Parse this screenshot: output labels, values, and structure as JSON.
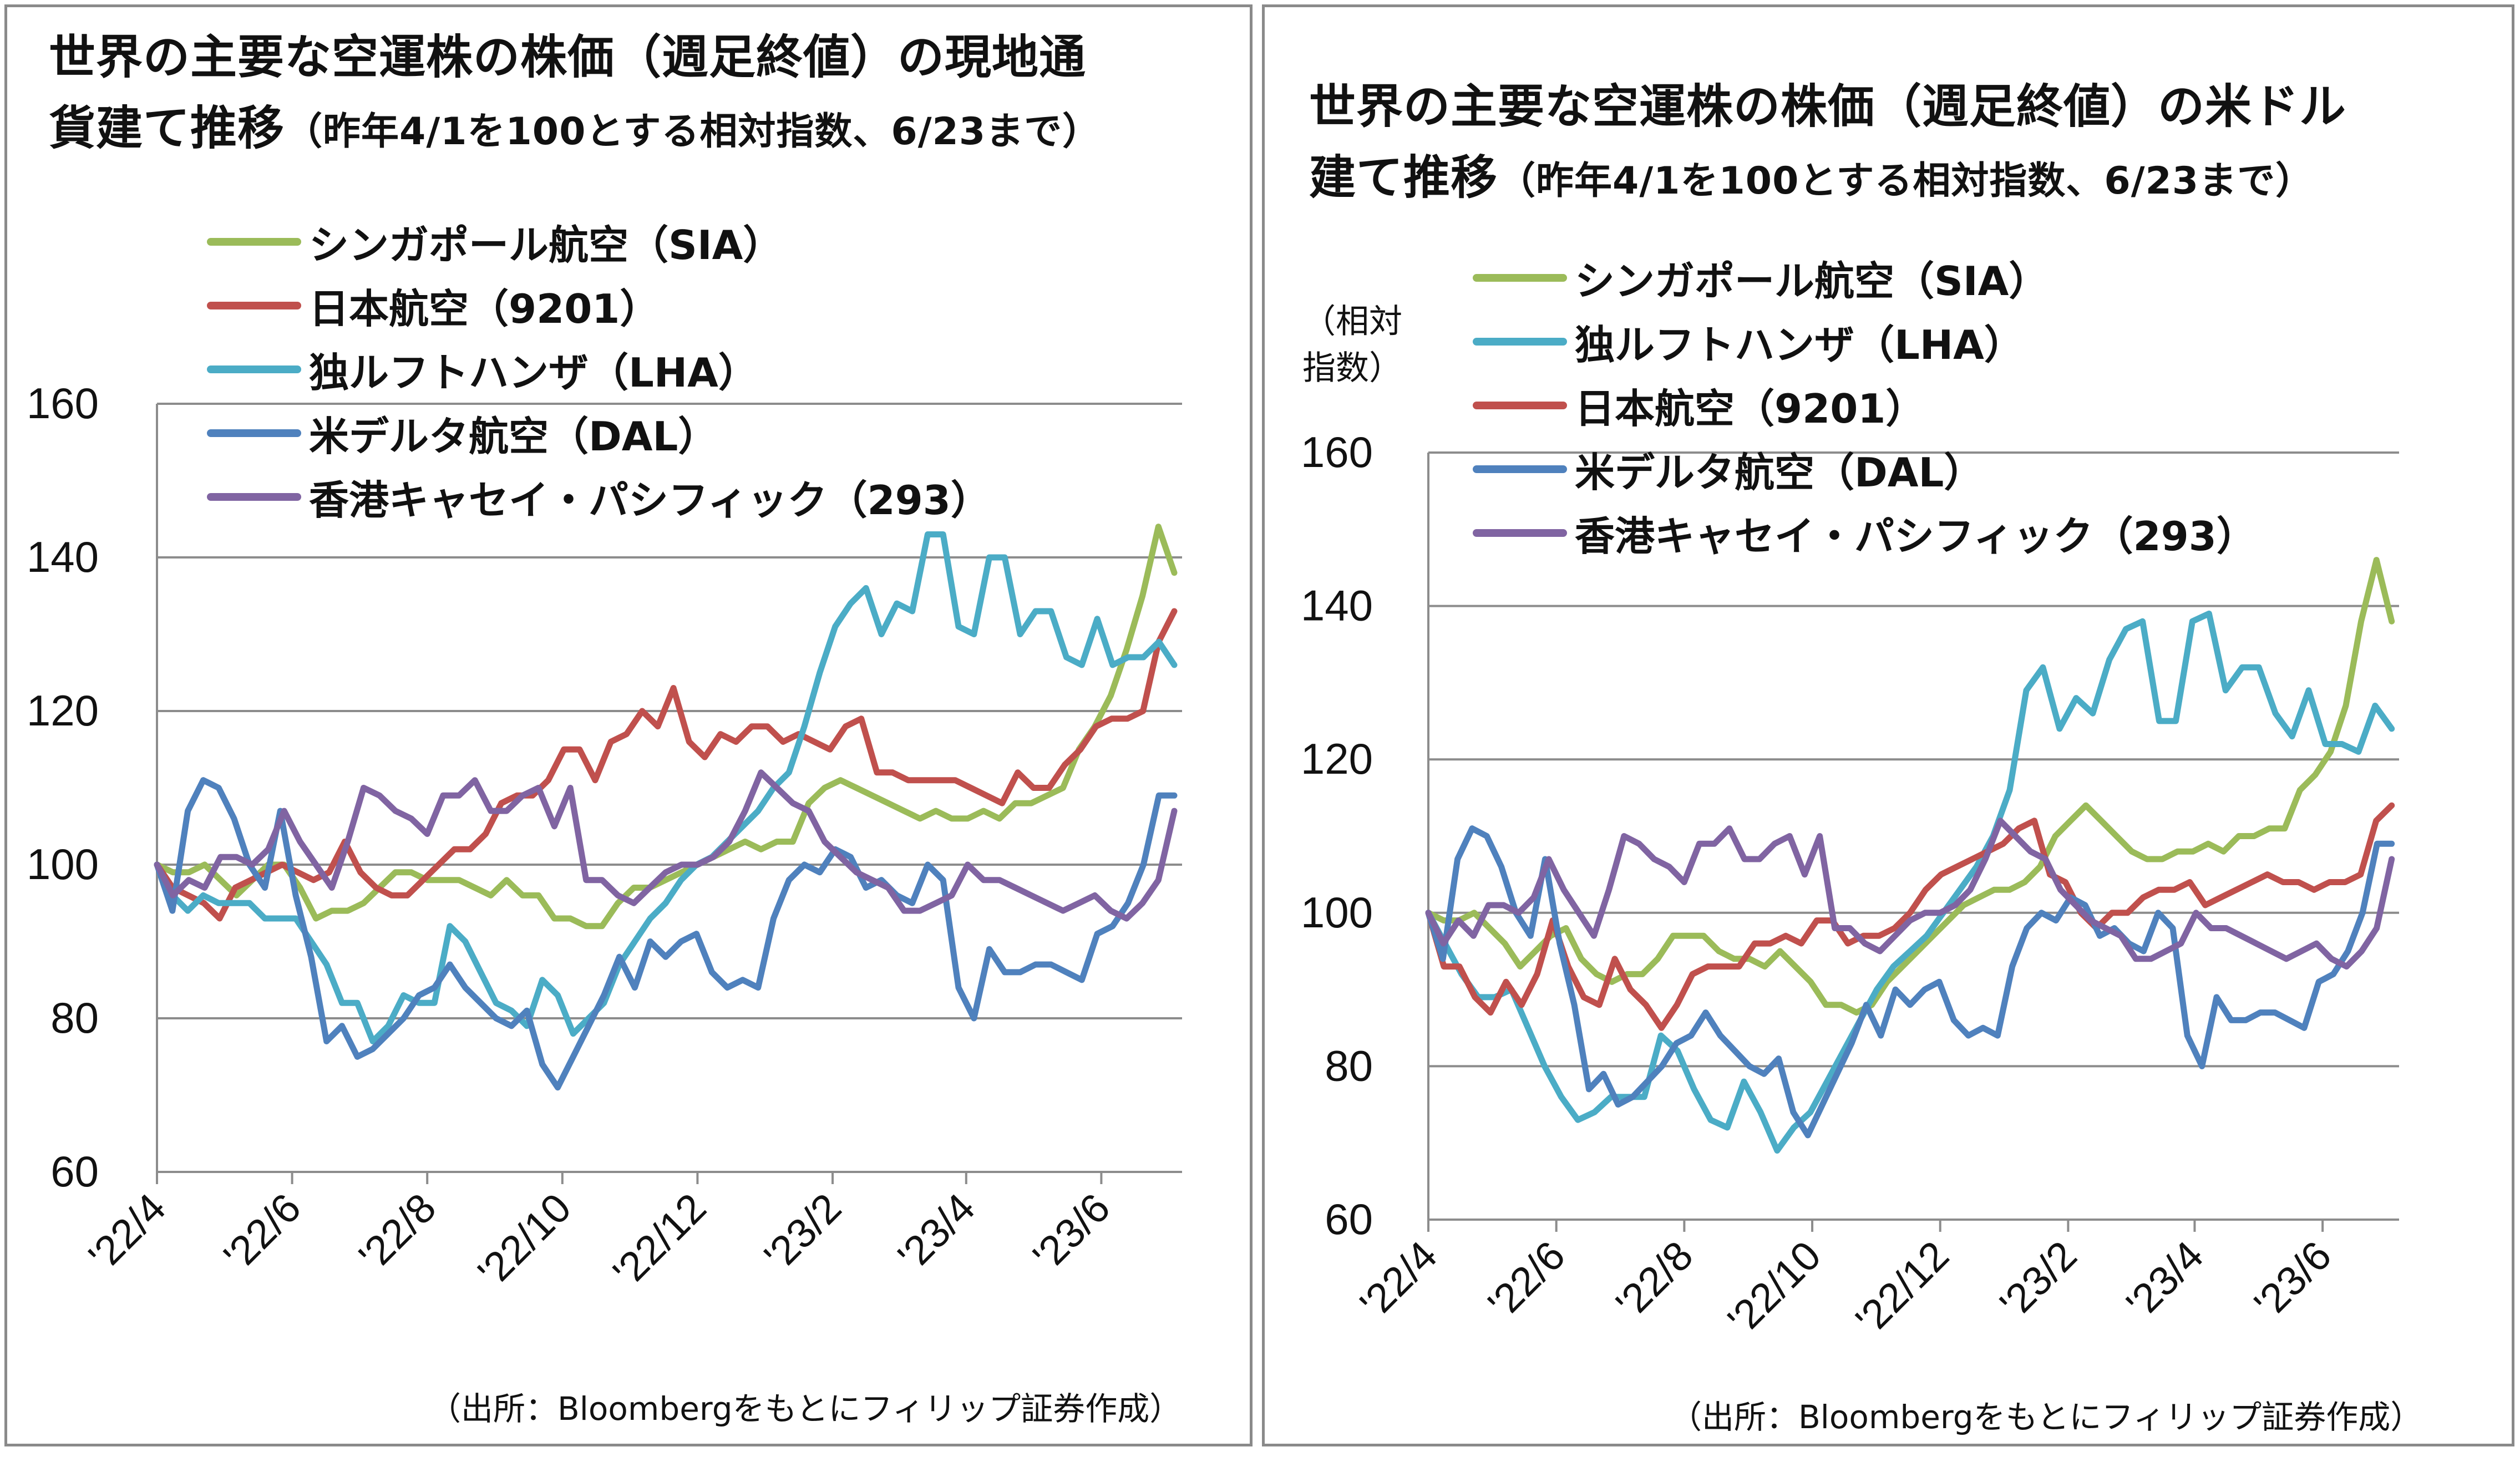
{
  "chart_data": [
    {
      "type": "line",
      "title": "世界の主要な空運株の株価（週足終値）の現地通",
      "title_line2": "貨建て推移",
      "subtitle": "（昨年4/1を100とする相対指数、6/23まで）",
      "xlabel": "",
      "ylabel": "",
      "ylim": [
        60,
        160
      ],
      "yticks": [
        "60",
        "80",
        "100",
        "120",
        "140",
        "160"
      ],
      "x_tick_labels": [
        "'22/4",
        "'22/6",
        "'22/8",
        "'22/10",
        "'22/12",
        "'23/2",
        "'23/4",
        "'23/6"
      ],
      "grid": "horizontal",
      "legend_position": "top-center",
      "source": "（出所：Bloombergをもとにフィリップ証券作成）",
      "series": [
        {
          "name": "シンガポール航空（SIA）",
          "color": "#9bbb59",
          "values": [
            100,
            99,
            99,
            100,
            98,
            96,
            98,
            100,
            100,
            97,
            93,
            94,
            94,
            95,
            97,
            99,
            99,
            98,
            98,
            98,
            97,
            96,
            98,
            96,
            96,
            93,
            93,
            92,
            92,
            95,
            97,
            97,
            98,
            99,
            100,
            101,
            102,
            103,
            102,
            103,
            103,
            108,
            110,
            111,
            110,
            109,
            108,
            107,
            106,
            107,
            106,
            106,
            107,
            106,
            108,
            108,
            109,
            110,
            115,
            118,
            122,
            128,
            135,
            144,
            138
          ]
        },
        {
          "name": "日本航空（9201）",
          "color": "#c0504d",
          "values": [
            100,
            97,
            96,
            95,
            93,
            97,
            98,
            99,
            100,
            99,
            98,
            99,
            103,
            99,
            97,
            96,
            96,
            98,
            100,
            102,
            102,
            104,
            108,
            109,
            109,
            111,
            115,
            115,
            111,
            116,
            117,
            120,
            118,
            123,
            116,
            114,
            117,
            116,
            118,
            118,
            116,
            117,
            116,
            115,
            118,
            119,
            112,
            112,
            111,
            111,
            111,
            111,
            110,
            109,
            108,
            112,
            110,
            110,
            113,
            115,
            118,
            119,
            119,
            120,
            129,
            133
          ]
        },
        {
          "name": "独ルフトハンザ（LHA）",
          "color": "#4bacc6",
          "values": [
            100,
            96,
            94,
            96,
            95,
            95,
            95,
            93,
            93,
            93,
            90,
            87,
            82,
            82,
            77,
            79,
            83,
            82,
            82,
            92,
            90,
            86,
            82,
            81,
            79,
            85,
            83,
            78,
            80,
            82,
            87,
            90,
            93,
            95,
            98,
            100,
            101,
            103,
            105,
            107,
            110,
            112,
            118,
            125,
            131,
            134,
            136,
            130,
            134,
            133,
            143,
            143,
            131,
            130,
            140,
            140,
            130,
            133,
            133,
            127,
            126,
            132,
            126,
            127,
            127,
            129,
            126
          ]
        },
        {
          "name": "米デルタ航空（DAL）",
          "color": "#4f81bd",
          "values": [
            100,
            94,
            107,
            111,
            110,
            106,
            100,
            97,
            107,
            96,
            88,
            77,
            79,
            75,
            76,
            78,
            80,
            83,
            84,
            87,
            84,
            82,
            80,
            79,
            81,
            74,
            71,
            75,
            79,
            83,
            88,
            84,
            90,
            88,
            90,
            91,
            86,
            84,
            85,
            84,
            93,
            98,
            100,
            99,
            102,
            101,
            97,
            98,
            96,
            95,
            100,
            98,
            84,
            80,
            89,
            86,
            86,
            87,
            87,
            86,
            85,
            91,
            92,
            95,
            100,
            109,
            109
          ]
        },
        {
          "name": "香港キャセイ・パシフィック（293）",
          "color": "#8064a2",
          "values": [
            100,
            96,
            98,
            97,
            101,
            101,
            100,
            102,
            107,
            103,
            100,
            97,
            103,
            110,
            109,
            107,
            106,
            104,
            109,
            109,
            111,
            107,
            107,
            109,
            110,
            105,
            110,
            98,
            98,
            96,
            95,
            97,
            99,
            100,
            100,
            101,
            103,
            107,
            112,
            110,
            108,
            107,
            103,
            101,
            99,
            98,
            97,
            94,
            94,
            95,
            96,
            100,
            98,
            98,
            97,
            96,
            95,
            94,
            95,
            96,
            94,
            93,
            95,
            98,
            107
          ]
        }
      ]
    },
    {
      "type": "line",
      "title": "世界の主要な空運株の株価（週足終値）の米ドル",
      "title_line2": "建て推移",
      "subtitle": "（昨年4/1を100とする相対指数、6/23まで）",
      "unit_label_1": "（相対",
      "unit_label_2": "指数）",
      "xlabel": "",
      "ylabel": "",
      "ylim": [
        60,
        160
      ],
      "yticks": [
        "60",
        "80",
        "100",
        "120",
        "140",
        "160"
      ],
      "x_tick_labels": [
        "'22/4",
        "'22/6",
        "'22/8",
        "'22/10",
        "'22/12",
        "'23/2",
        "'23/4",
        "'23/6"
      ],
      "grid": "horizontal",
      "legend_position": "top-center",
      "source": "（出所：Bloombergをもとにフィリップ証券作成）",
      "series": [
        {
          "name": "シンガポール航空（SIA）",
          "color": "#9bbb59",
          "values": [
            100,
            99,
            99,
            100,
            98,
            96,
            93,
            95,
            97,
            98,
            94,
            92,
            91,
            92,
            92,
            94,
            97,
            97,
            97,
            95,
            94,
            94,
            93,
            95,
            93,
            91,
            88,
            88,
            87,
            88,
            91,
            93,
            95,
            97,
            99,
            101,
            102,
            103,
            103,
            104,
            106,
            110,
            112,
            114,
            112,
            110,
            108,
            107,
            107,
            108,
            108,
            109,
            108,
            110,
            110,
            111,
            111,
            116,
            118,
            121,
            127,
            138,
            146,
            138
          ]
        },
        {
          "name": "独ルフトハンザ（LHA）",
          "color": "#4bacc6",
          "values": [
            100,
            96,
            92,
            89,
            89,
            90,
            85,
            80,
            76,
            73,
            74,
            76,
            76,
            76,
            84,
            82,
            77,
            73,
            72,
            78,
            74,
            69,
            72,
            74,
            78,
            82,
            86,
            90,
            93,
            95,
            97,
            100,
            103,
            106,
            110,
            116,
            129,
            132,
            124,
            128,
            126,
            133,
            137,
            138,
            125,
            125,
            138,
            139,
            129,
            132,
            132,
            126,
            123,
            129,
            122,
            122,
            121,
            127,
            124
          ]
        },
        {
          "name": "日本航空（9201）",
          "color": "#c0504d",
          "values": [
            100,
            93,
            93,
            89,
            87,
            91,
            88,
            92,
            99,
            93,
            89,
            88,
            94,
            90,
            88,
            85,
            88,
            92,
            93,
            93,
            93,
            96,
            96,
            97,
            96,
            99,
            99,
            96,
            97,
            97,
            98,
            100,
            103,
            105,
            106,
            107,
            108,
            109,
            111,
            112,
            105,
            104,
            100,
            98,
            100,
            100,
            102,
            103,
            103,
            104,
            101,
            102,
            103,
            104,
            105,
            104,
            104,
            103,
            104,
            104,
            105,
            112,
            114
          ]
        },
        {
          "name": "米デルタ航空（DAL）",
          "color": "#4f81bd",
          "values": [
            100,
            94,
            107,
            111,
            110,
            106,
            100,
            97,
            107,
            96,
            88,
            77,
            79,
            75,
            76,
            78,
            80,
            83,
            84,
            87,
            84,
            82,
            80,
            79,
            81,
            74,
            71,
            75,
            79,
            83,
            88,
            84,
            90,
            88,
            90,
            91,
            86,
            84,
            85,
            84,
            93,
            98,
            100,
            99,
            102,
            101,
            97,
            98,
            96,
            95,
            100,
            98,
            84,
            80,
            89,
            86,
            86,
            87,
            87,
            86,
            85,
            91,
            92,
            95,
            100,
            109,
            109
          ]
        },
        {
          "name": "香港キャセイ・パシフィック（293）",
          "color": "#8064a2",
          "values": [
            100,
            96,
            99,
            97,
            101,
            101,
            100,
            102,
            107,
            103,
            100,
            97,
            103,
            110,
            109,
            107,
            106,
            104,
            109,
            109,
            111,
            107,
            107,
            109,
            110,
            105,
            110,
            98,
            98,
            96,
            95,
            97,
            99,
            100,
            100,
            101,
            103,
            107,
            112,
            110,
            108,
            107,
            103,
            101,
            99,
            98,
            97,
            94,
            94,
            95,
            96,
            100,
            98,
            98,
            97,
            96,
            95,
            94,
            95,
            96,
            94,
            93,
            95,
            98,
            107
          ]
        }
      ]
    }
  ]
}
